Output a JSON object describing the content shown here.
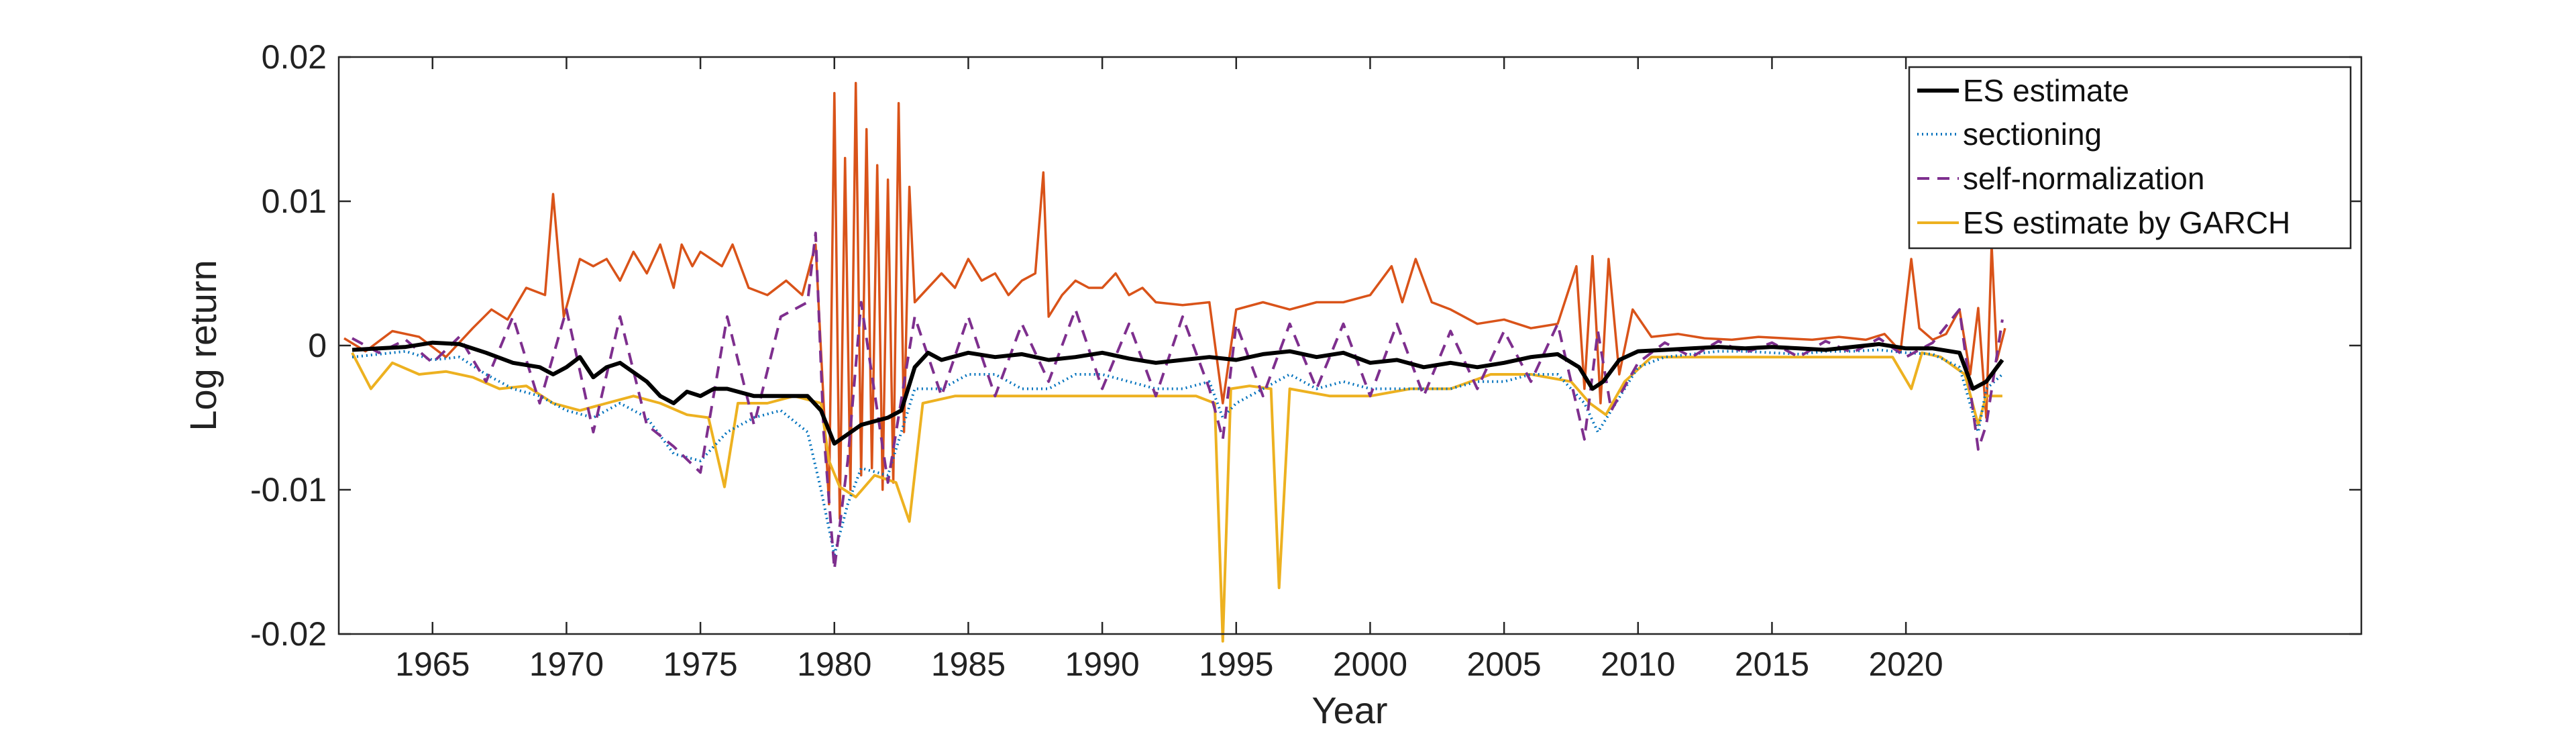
{
  "chart_data": {
    "type": "line",
    "title": "",
    "xlabel": "Year",
    "ylabel": "Log return",
    "xlim": [
      1961.5,
      2037
    ],
    "ylim": [
      -0.02,
      0.02
    ],
    "x_ticks": [
      1965,
      1970,
      1975,
      1980,
      1985,
      1990,
      1995,
      2000,
      2005,
      2010,
      2015,
      2020
    ],
    "y_ticks": [
      -0.02,
      -0.01,
      0,
      0.01,
      0.02
    ],
    "y_tick_labels": [
      "-0.02",
      "-0.01",
      "0",
      "0.01",
      "0.02"
    ],
    "legend_position": "top-right",
    "returns_series": {
      "name": "log return",
      "color": "#D95319",
      "x": [
        1961.7,
        1962.5,
        1963.5,
        1964.5,
        1965.5,
        1966.5,
        1967.2,
        1967.8,
        1968.5,
        1969.2,
        1969.5,
        1969.9,
        1970.5,
        1971.0,
        1971.5,
        1972.0,
        1972.5,
        1973.0,
        1973.5,
        1974.0,
        1974.3,
        1974.7,
        1975.0,
        1975.4,
        1975.8,
        1976.2,
        1976.8,
        1977.5,
        1978.2,
        1978.8,
        1979.3,
        1979.6,
        1979.8,
        1980.0,
        1980.2,
        1980.4,
        1980.6,
        1980.8,
        1981.0,
        1981.2,
        1981.4,
        1981.6,
        1981.8,
        1982.0,
        1982.2,
        1982.4,
        1982.6,
        1982.8,
        1983.0,
        1983.5,
        1984.0,
        1984.5,
        1985.0,
        1985.5,
        1986.0,
        1986.5,
        1987.0,
        1987.5,
        1987.8,
        1988.0,
        1988.5,
        1989.0,
        1989.5,
        1990.0,
        1990.5,
        1991.0,
        1991.5,
        1992.0,
        1993.0,
        1994.0,
        1994.5,
        1995.0,
        1996.0,
        1997.0,
        1998.0,
        1999.0,
        2000.0,
        2000.8,
        2001.2,
        2001.7,
        2002.3,
        2003.0,
        2004.0,
        2005.0,
        2006.0,
        2007.0,
        2007.7,
        2008.0,
        2008.3,
        2008.6,
        2008.9,
        2009.3,
        2009.8,
        2010.5,
        2011.5,
        2012.5,
        2013.5,
        2014.5,
        2015.5,
        2016.5,
        2017.5,
        2018.5,
        2019.2,
        2019.8,
        2020.2,
        2020.5,
        2021.0,
        2021.5,
        2022.0,
        2022.4,
        2022.7,
        2023.0,
        2023.2,
        2023.4,
        2023.7
      ],
      "y": [
        0.0005,
        -0.0004,
        0.001,
        0.0006,
        -0.0008,
        0.0012,
        0.0025,
        0.0018,
        0.004,
        0.0035,
        0.0105,
        0.002,
        0.006,
        0.0055,
        0.006,
        0.0045,
        0.0065,
        0.005,
        0.007,
        0.004,
        0.007,
        0.0055,
        0.0065,
        0.006,
        0.0055,
        0.007,
        0.004,
        0.0035,
        0.0045,
        0.0035,
        0.007,
        -0.004,
        -0.011,
        0.0175,
        -0.012,
        0.013,
        -0.01,
        0.0182,
        -0.009,
        0.015,
        -0.0085,
        0.0125,
        -0.01,
        0.0115,
        -0.0095,
        0.0168,
        -0.006,
        0.011,
        0.003,
        0.004,
        0.005,
        0.004,
        0.006,
        0.0045,
        0.005,
        0.0035,
        0.0045,
        0.005,
        0.012,
        0.002,
        0.0035,
        0.0045,
        0.004,
        0.004,
        0.005,
        0.0035,
        0.004,
        0.003,
        0.0028,
        0.003,
        -0.004,
        0.0025,
        0.003,
        0.0025,
        0.003,
        0.003,
        0.0035,
        0.0055,
        0.003,
        0.006,
        0.003,
        0.0025,
        0.0015,
        0.0018,
        0.0012,
        0.0015,
        0.0055,
        -0.003,
        0.0062,
        -0.004,
        0.006,
        -0.002,
        0.0025,
        0.0006,
        0.0008,
        0.0005,
        0.0004,
        0.0006,
        0.0005,
        0.0004,
        0.0006,
        0.0004,
        0.0008,
        -0.0004,
        0.006,
        0.0012,
        0.0004,
        0.0008,
        0.0025,
        -0.002,
        0.0026,
        -0.005,
        0.007,
        -0.001,
        0.0012
      ]
    },
    "series": [
      {
        "name": "ES estimate",
        "color": "#000000",
        "style": "solid",
        "x": [
          1962,
          1963,
          1964,
          1965,
          1966,
          1967,
          1968,
          1969,
          1969.5,
          1970,
          1970.5,
          1971,
          1971.5,
          1972,
          1973,
          1973.5,
          1974,
          1974.5,
          1975,
          1975.5,
          1976,
          1977,
          1978,
          1979,
          1979.5,
          1980,
          1981,
          1982,
          1982.5,
          1983,
          1983.5,
          1984,
          1985,
          1986,
          1987,
          1988,
          1989,
          1990,
          1991,
          1992,
          1993,
          1994,
          1995,
          1996,
          1997,
          1998,
          1999,
          2000,
          2001,
          2002,
          2003,
          2004,
          2005,
          2006,
          2007,
          2007.8,
          2008.3,
          2008.7,
          2009.3,
          2010,
          2011,
          2012,
          2013,
          2014,
          2015,
          2016,
          2017,
          2018,
          2019,
          2020,
          2021,
          2022,
          2022.5,
          2023,
          2023.6
        ],
        "y": [
          -0.0003,
          -0.0002,
          -0.0001,
          0.0002,
          0.0001,
          -0.0005,
          -0.0012,
          -0.0015,
          -0.002,
          -0.0015,
          -0.0008,
          -0.0022,
          -0.0015,
          -0.0012,
          -0.0025,
          -0.0035,
          -0.004,
          -0.0032,
          -0.0035,
          -0.003,
          -0.003,
          -0.0035,
          -0.0035,
          -0.0035,
          -0.0045,
          -0.0068,
          -0.0055,
          -0.005,
          -0.0045,
          -0.0015,
          -0.0005,
          -0.001,
          -0.0005,
          -0.0008,
          -0.0006,
          -0.001,
          -0.0008,
          -0.0005,
          -0.0009,
          -0.0012,
          -0.001,
          -0.0008,
          -0.001,
          -0.0006,
          -0.0004,
          -0.0008,
          -0.0005,
          -0.0012,
          -0.001,
          -0.0015,
          -0.0012,
          -0.0015,
          -0.0012,
          -0.0008,
          -0.0006,
          -0.0015,
          -0.003,
          -0.0025,
          -0.001,
          -0.0004,
          -0.0003,
          -0.0002,
          -0.0001,
          -0.0002,
          -0.0001,
          -0.0002,
          -0.0003,
          -0.0001,
          0.0001,
          -0.0002,
          -0.0002,
          -0.0005,
          -0.003,
          -0.0025,
          -0.001
        ]
      },
      {
        "name": "sectioning",
        "color": "#0072BD",
        "style": "dotted",
        "x": [
          1962,
          1963,
          1964,
          1965,
          1966,
          1967,
          1968,
          1969,
          1970,
          1971,
          1972,
          1973,
          1974,
          1975,
          1976,
          1977,
          1978,
          1979,
          1979.5,
          1980,
          1980.5,
          1981,
          1982,
          1983,
          1984,
          1985,
          1986,
          1987,
          1988,
          1989,
          1990,
          1991,
          1992,
          1993,
          1994,
          1994.5,
          1995,
          1996,
          1997,
          1998,
          1999,
          2000,
          2001,
          2002,
          2003,
          2004,
          2005,
          2006,
          2007,
          2008,
          2008.5,
          2009,
          2010,
          2011,
          2012,
          2013,
          2014,
          2015,
          2016,
          2017,
          2018,
          2019,
          2020,
          2021,
          2022,
          2022.7,
          2023,
          2023.6
        ],
        "y": [
          -0.0008,
          -0.0006,
          -0.0004,
          -0.001,
          -0.0008,
          -0.002,
          -0.003,
          -0.0035,
          -0.0045,
          -0.005,
          -0.004,
          -0.005,
          -0.0075,
          -0.008,
          -0.006,
          -0.005,
          -0.0045,
          -0.006,
          -0.01,
          -0.0145,
          -0.011,
          -0.0085,
          -0.009,
          -0.003,
          -0.003,
          -0.002,
          -0.002,
          -0.003,
          -0.003,
          -0.002,
          -0.002,
          -0.0025,
          -0.003,
          -0.003,
          -0.0025,
          -0.005,
          -0.004,
          -0.003,
          -0.002,
          -0.003,
          -0.0025,
          -0.003,
          -0.003,
          -0.003,
          -0.003,
          -0.0025,
          -0.0025,
          -0.002,
          -0.002,
          -0.004,
          -0.006,
          -0.0045,
          -0.0015,
          -0.0008,
          -0.0006,
          -0.0004,
          -0.0004,
          -0.0005,
          -0.0006,
          -0.0004,
          -0.0004,
          -0.0003,
          -0.0005,
          -0.0006,
          -0.0015,
          -0.006,
          -0.003,
          -0.002
        ]
      },
      {
        "name": "self-normalization",
        "color": "#7E2F8E",
        "style": "dashed",
        "x": [
          1962,
          1963,
          1964,
          1965,
          1966,
          1967,
          1968,
          1969,
          1970,
          1971,
          1972,
          1973,
          1974,
          1975,
          1976,
          1977,
          1978,
          1979,
          1979.3,
          1979.6,
          1980,
          1980.5,
          1981,
          1982,
          1983,
          1984,
          1985,
          1986,
          1987,
          1988,
          1989,
          1990,
          1991,
          1992,
          1993,
          1994,
          1994.5,
          1995,
          1996,
          1997,
          1998,
          1999,
          2000,
          2001,
          2002,
          2003,
          2004,
          2005,
          2006,
          2007,
          2008,
          2008.5,
          2009,
          2010,
          2011,
          2012,
          2013,
          2014,
          2015,
          2016,
          2017,
          2018,
          2019,
          2020,
          2021,
          2022,
          2022.7,
          2023,
          2023.6
        ],
        "y": [
          0.0005,
          -0.0005,
          0.0004,
          -0.0012,
          0.0006,
          -0.0025,
          0.002,
          -0.004,
          0.0025,
          -0.006,
          0.002,
          -0.0055,
          -0.007,
          -0.0088,
          0.002,
          -0.0055,
          0.002,
          0.003,
          0.0078,
          -0.006,
          -0.0155,
          -0.008,
          0.003,
          -0.0095,
          0.002,
          -0.0035,
          0.002,
          -0.0035,
          0.0015,
          -0.0025,
          0.0025,
          -0.003,
          0.0015,
          -0.0035,
          0.002,
          -0.003,
          -0.0065,
          0.0015,
          -0.0035,
          0.0015,
          -0.003,
          0.0015,
          -0.0035,
          0.0015,
          -0.0035,
          0.001,
          -0.003,
          0.001,
          -0.0025,
          0.0015,
          -0.0065,
          0.001,
          -0.0045,
          -0.0012,
          0.0002,
          -0.0008,
          0.0003,
          -0.0005,
          0.0002,
          -0.0008,
          0.0003,
          -0.0005,
          0.0005,
          -0.0008,
          0.0002,
          0.0025,
          -0.0072,
          -0.0055,
          0.0018
        ]
      },
      {
        "name": "ES estimate by GARCH",
        "color": "#EDB120",
        "style": "solid",
        "x": [
          1962,
          1962.7,
          1963.5,
          1964.5,
          1965.5,
          1966.5,
          1967.5,
          1968.5,
          1969.5,
          1970.5,
          1971.5,
          1972.5,
          1973.5,
          1974.5,
          1975.3,
          1975.9,
          1976.4,
          1977.5,
          1978.5,
          1979.5,
          1979.8,
          1980.2,
          1980.8,
          1981.5,
          1982.3,
          1982.8,
          1983.3,
          1984.5,
          1986,
          1988,
          1990,
          1992,
          1993.5,
          1994.2,
          1994.5,
          1994.8,
          1995.5,
          1996.3,
          1996.6,
          1997,
          1998.5,
          2000,
          2001.5,
          2003,
          2004.5,
          2006,
          2007.5,
          2008.2,
          2008.8,
          2009.5,
          2010.5,
          2012,
          2014,
          2016,
          2018,
          2019.5,
          2020.2,
          2020.6,
          2021.3,
          2022.2,
          2022.7,
          2023,
          2023.6
        ],
        "y": [
          -0.0005,
          -0.003,
          -0.0012,
          -0.002,
          -0.0018,
          -0.0022,
          -0.003,
          -0.0028,
          -0.004,
          -0.0045,
          -0.004,
          -0.0035,
          -0.004,
          -0.0048,
          -0.005,
          -0.0098,
          -0.004,
          -0.004,
          -0.0035,
          -0.004,
          -0.008,
          -0.0098,
          -0.0105,
          -0.009,
          -0.0095,
          -0.0122,
          -0.004,
          -0.0035,
          -0.0035,
          -0.0035,
          -0.0035,
          -0.0035,
          -0.0035,
          -0.004,
          -0.0205,
          -0.003,
          -0.0028,
          -0.003,
          -0.0168,
          -0.003,
          -0.0035,
          -0.0035,
          -0.003,
          -0.003,
          -0.002,
          -0.002,
          -0.0025,
          -0.004,
          -0.0048,
          -0.0025,
          -0.0008,
          -0.0008,
          -0.0008,
          -0.0008,
          -0.0008,
          -0.0008,
          -0.003,
          -0.0005,
          -0.0008,
          -0.002,
          -0.0055,
          -0.0035,
          -0.0035
        ]
      }
    ]
  }
}
